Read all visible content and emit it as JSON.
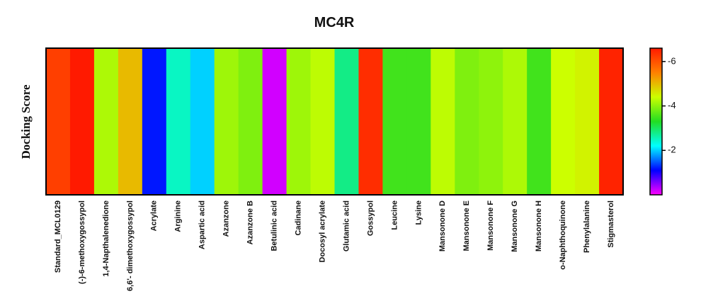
{
  "chart_data": {
    "type": "heatmap",
    "title": "MC4R",
    "y_label": "Docking Score",
    "categories": [
      "Standard_MCL0129",
      "(-)-6-methoxygossypol",
      "1,4-Napthalenedione",
      "6,6'- dimethoxygossypol",
      "Acrylate",
      "Arginine",
      "Aspartic acid",
      "Azanzone",
      "Azanzone B",
      "Betulinic acid",
      "Cadinane",
      "Docosyl acrylate",
      "Glutamic acid",
      "Gossypol",
      "Leucine",
      "Lysine",
      "Mansonone D",
      "Mansonone E",
      "Mansonone F",
      "Mansonone G",
      "Mansonone H",
      "o-Naphthoquinone",
      "Phenylalanine",
      "Stigmasterol"
    ],
    "values": [
      -6.2,
      -6.6,
      -4.2,
      -5.0,
      -1.2,
      -2.5,
      -2.0,
      -4.1,
      -3.9,
      -0.2,
      -4.1,
      -4.3,
      -2.8,
      -6.4,
      -3.5,
      -3.5,
      -4.3,
      -3.9,
      -4.0,
      -4.2,
      -3.5,
      -4.4,
      -4.5,
      -6.5
    ],
    "clim": [
      0,
      -6.6
    ],
    "cticks": [
      -2,
      -4,
      -6
    ],
    "colormap": [
      "#ff00ff",
      "#0000ff",
      "#00ffff",
      "#22dd22",
      "#ccff00",
      "#ff8000",
      "#ff1a00"
    ]
  }
}
